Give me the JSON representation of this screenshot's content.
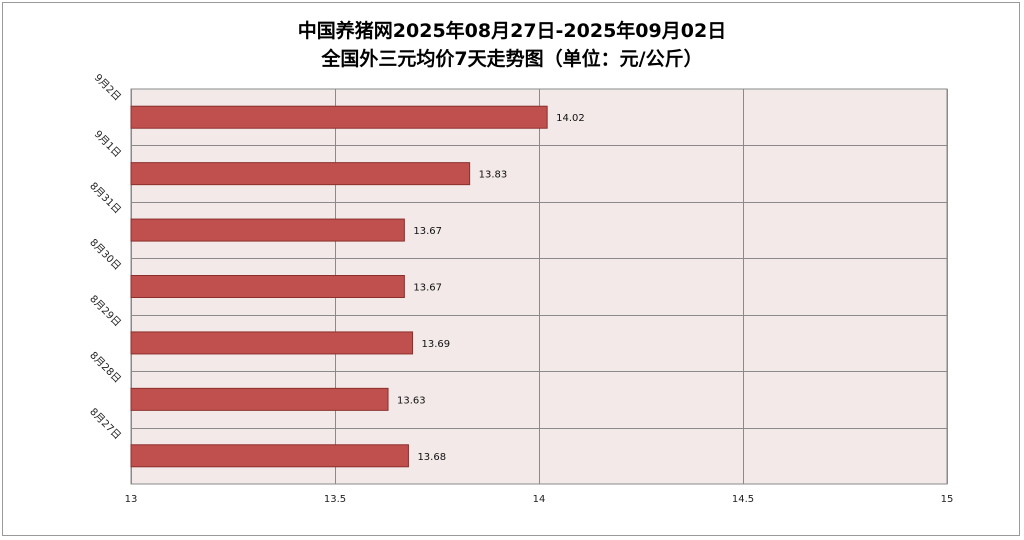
{
  "chart_data": {
    "type": "bar",
    "orientation": "horizontal",
    "title": "中国养猪网2025年08月27日-2025年09月02日",
    "subtitle": "全国外三元均价7天走势图（单位：元/公斤）",
    "categories": [
      "9月2日",
      "9月1日",
      "8月31日",
      "8月30日",
      "8月29日",
      "8月28日",
      "8月27日"
    ],
    "values": [
      14.02,
      13.83,
      13.67,
      13.67,
      13.69,
      13.63,
      13.68
    ],
    "data_labels": [
      "14.02",
      "13.83",
      "13.67",
      "13.67",
      "13.69",
      "13.63",
      "13.68"
    ],
    "xlim": [
      13,
      15
    ],
    "xticks": [
      13,
      13.5,
      14,
      14.5,
      15
    ],
    "xtick_labels": [
      "13",
      "13.5",
      "14",
      "14.5",
      "15"
    ],
    "xlabel": "",
    "ylabel": "",
    "grid": true,
    "legend": "none",
    "colors": {
      "bar_fill": "#c0504d",
      "bar_stroke": "#8c2f2c",
      "plot_background": "#f2e9e8",
      "grid": "#8a8a8a"
    }
  }
}
